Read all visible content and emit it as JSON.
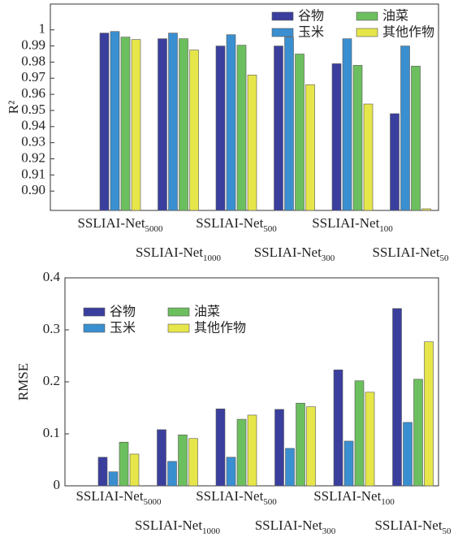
{
  "chart_data": [
    {
      "type": "bar",
      "y_label": "R²",
      "legend": "upper right",
      "categories": [
        {
          "base": "SSLIAI-Net",
          "sub": "5000"
        },
        {
          "base": "SSLIAI-Net",
          "sub": "1000"
        },
        {
          "base": "SSLIAI-Net",
          "sub": "500"
        },
        {
          "base": "SSLIAI-Net",
          "sub": "300"
        },
        {
          "base": "SSLIAI-Net",
          "sub": "100"
        },
        {
          "base": "SSLIAI-Net",
          "sub": "50"
        }
      ],
      "series": [
        {
          "name": "谷物",
          "color": "#3a3f9e",
          "values": [
            0.998,
            0.9945,
            0.99,
            0.99,
            0.979,
            0.948
          ]
        },
        {
          "name": "玉米",
          "color": "#3a8fd0",
          "values": [
            0.999,
            0.998,
            0.997,
            0.9955,
            0.9945,
            0.99
          ]
        },
        {
          "name": "油菜",
          "color": "#6cbf5e",
          "values": [
            0.9955,
            0.9945,
            0.9905,
            0.985,
            0.978,
            0.9775
          ]
        },
        {
          "name": "其他作物",
          "color": "#e6e64a",
          "values": [
            0.994,
            0.9875,
            0.972,
            0.966,
            0.954,
            0.889
          ]
        }
      ],
      "ylim": [
        0.888,
        1.016
      ],
      "yticks": [
        {
          "value": 0.9,
          "label": "0.90"
        },
        0.91,
        0.92,
        0.93,
        0.94,
        0.95,
        0.96,
        0.97,
        0.98,
        0.99,
        1
      ]
    },
    {
      "type": "bar",
      "y_label": "RMSE",
      "legend": "upper left",
      "categories": [
        {
          "base": "SSLIAI-Net",
          "sub": "5000"
        },
        {
          "base": "SSLIAI-Net",
          "sub": "1000"
        },
        {
          "base": "SSLIAI-Net",
          "sub": "500"
        },
        {
          "base": "SSLIAI-Net",
          "sub": "300"
        },
        {
          "base": "SSLIAI-Net",
          "sub": "100"
        },
        {
          "base": "SSLIAI-Net",
          "sub": "50"
        }
      ],
      "series": [
        {
          "name": "谷物",
          "color": "#3a3f9e",
          "values": [
            0.055,
            0.108,
            0.148,
            0.147,
            0.223,
            0.341
          ]
        },
        {
          "name": "玉米",
          "color": "#3a8fd0",
          "values": [
            0.027,
            0.047,
            0.055,
            0.072,
            0.086,
            0.122
          ]
        },
        {
          "name": "油菜",
          "color": "#6cbf5e",
          "values": [
            0.084,
            0.098,
            0.128,
            0.159,
            0.202,
            0.205
          ]
        },
        {
          "name": "其他作物",
          "color": "#e6e64a",
          "values": [
            0.061,
            0.091,
            0.136,
            0.152,
            0.18,
            0.277
          ]
        }
      ],
      "ylim": [
        0,
        0.4
      ],
      "yticks": [
        0,
        0.1,
        0.2,
        0.3,
        0.4
      ]
    }
  ]
}
